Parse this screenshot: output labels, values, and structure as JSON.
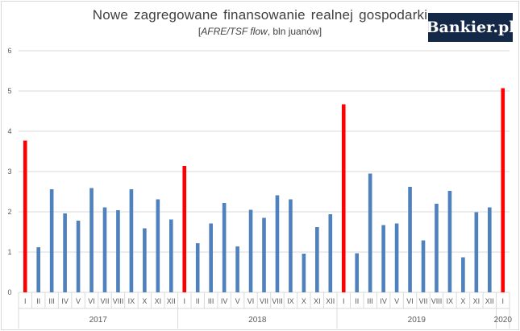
{
  "header": {
    "title": "Nowe zagregowane finansowanie realnej gospodarki",
    "subtitle_italic": "AFRE/TSF flow",
    "subtitle_rest": ", bln juanów"
  },
  "logo": {
    "text": "Bankier.pl"
  },
  "colors": {
    "normal": "#4f81bd",
    "highlight": "#ff0000",
    "grid": "#d9d9d9"
  },
  "chart_data": {
    "type": "bar",
    "title": "Nowe zagregowane finansowanie realnej gospodarki",
    "subtitle": "[AFRE/TSF flow, bln juanów]",
    "ylim": [
      0,
      6
    ],
    "yticks": [
      0,
      1,
      2,
      3,
      4,
      5,
      6
    ],
    "grid": true,
    "groups": [
      {
        "year": "2017",
        "categories": [
          "I",
          "II",
          "III",
          "IV",
          "V",
          "VI",
          "VII",
          "VIII",
          "IX",
          "X",
          "XI",
          "XII"
        ],
        "values": [
          3.77,
          1.12,
          2.56,
          1.96,
          1.78,
          2.59,
          2.11,
          2.04,
          2.56,
          1.59,
          2.31,
          1.81
        ]
      },
      {
        "year": "2018",
        "categories": [
          "I",
          "II",
          "III",
          "IV",
          "V",
          "VI",
          "VII",
          "VIII",
          "IX",
          "X",
          "XI",
          "XII"
        ],
        "values": [
          3.14,
          1.22,
          1.71,
          2.22,
          1.14,
          2.05,
          1.85,
          2.41,
          2.31,
          0.96,
          1.62,
          1.94
        ]
      },
      {
        "year": "2019",
        "categories": [
          "I",
          "II",
          "III",
          "IV",
          "V",
          "VI",
          "VII",
          "VIII",
          "IX",
          "X",
          "XI",
          "XII"
        ],
        "values": [
          4.67,
          0.97,
          2.95,
          1.67,
          1.71,
          2.62,
          1.29,
          2.2,
          2.52,
          0.87,
          1.99,
          2.11
        ]
      },
      {
        "year": "2020",
        "categories": [
          "I"
        ],
        "values": [
          5.07
        ]
      }
    ],
    "highlighted_category": "I"
  }
}
